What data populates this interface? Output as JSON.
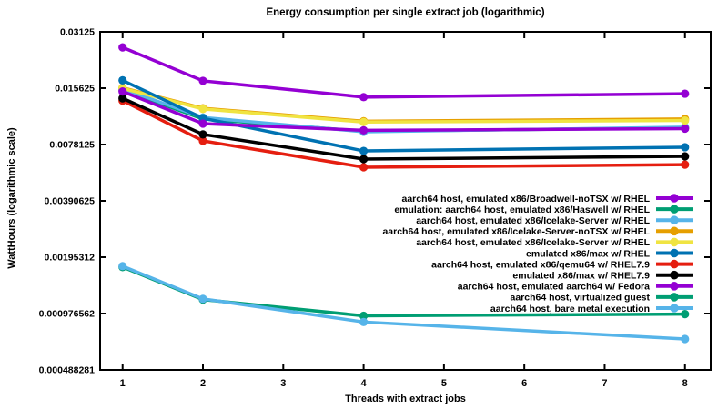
{
  "title": "Energy consumption per single extract job (logarithmic)",
  "chart_data": {
    "type": "line",
    "title": "Energy consumption per single extract job (logarithmic)",
    "xlabel": "Threads with extract jobs",
    "ylabel": "WattHours (logarithmic scale)",
    "x": [
      1,
      2,
      4,
      8
    ],
    "x_ticks": [
      1,
      2,
      3,
      4,
      5,
      6,
      7,
      8
    ],
    "xlim": [
      0.72,
      8.32
    ],
    "y_scale": "log2",
    "ylim": [
      0.000488281,
      0.03125
    ],
    "y_ticks": [
      0.03125,
      0.015625,
      0.0078125,
      0.00390625,
      0.00195312,
      0.000976562,
      0.000488281
    ],
    "y_tick_labels": [
      "0.03125",
      "0.015625",
      "0.0078125",
      "0.00390625",
      "0.00195312",
      "0.000976562",
      "0.000488281"
    ],
    "grid": false,
    "legend_position": "inside-right",
    "series": [
      {
        "name": "aarch64 host, emulated x86/Broadwell-noTSX w/ RHEL",
        "color": "#9400d3",
        "values": [
          0.0258,
          0.0171,
          0.014,
          0.0146
        ]
      },
      {
        "name": "emulation: aarch64 host, emulated x86/Haswell w/ RHEL",
        "color": "#009e73",
        "values": [
          0.0153,
          0.0107,
          0.0092,
          0.0096
        ]
      },
      {
        "name": "aarch64 host, emulated x86/Icelake-Server w/ RHEL",
        "color": "#56b4e9",
        "values": [
          0.0155,
          0.0109,
          0.00914,
          0.00967
        ]
      },
      {
        "name": "aarch64 host, emulated x86/Icelake-Server-noTSX w/ RHEL",
        "color": "#e69f00",
        "values": [
          0.0157,
          0.0122,
          0.0104,
          0.0107
        ]
      },
      {
        "name": "aarch64 host, emulated x86/Icelake-Server w/ RHEL",
        "color": "#f0e442",
        "values": [
          0.0156,
          0.0121,
          0.0103,
          0.0105
        ]
      },
      {
        "name": "emulated x86/max w/ RHEL",
        "color": "#0072b2",
        "values": [
          0.0172,
          0.0108,
          0.00722,
          0.00756
        ]
      },
      {
        "name": "aarch64 host, emulated x86/qemu64 w/ RHEL7.9",
        "color": "#e51e10",
        "values": [
          0.0134,
          0.00817,
          0.00591,
          0.0061
        ]
      },
      {
        "name": "emulated x86/max w/ RHEL7.9",
        "color": "#000000",
        "values": [
          0.0138,
          0.00885,
          0.00653,
          0.00676
        ]
      },
      {
        "name": "aarch64 host, emulated aarch64 w/ Fedora",
        "color": "#9400d3",
        "values": [
          0.015,
          0.0101,
          0.0093,
          0.0095
        ]
      },
      {
        "name": "aarch64 host, virtualized guest",
        "color": "#009e73",
        "values": [
          0.00173,
          0.00116,
          0.00095,
          0.00097
        ]
      },
      {
        "name": "aarch64 host, bare metal execution",
        "color": "#56b4e9",
        "values": [
          0.00175,
          0.00117,
          0.00088,
          0.000714
        ]
      }
    ]
  }
}
